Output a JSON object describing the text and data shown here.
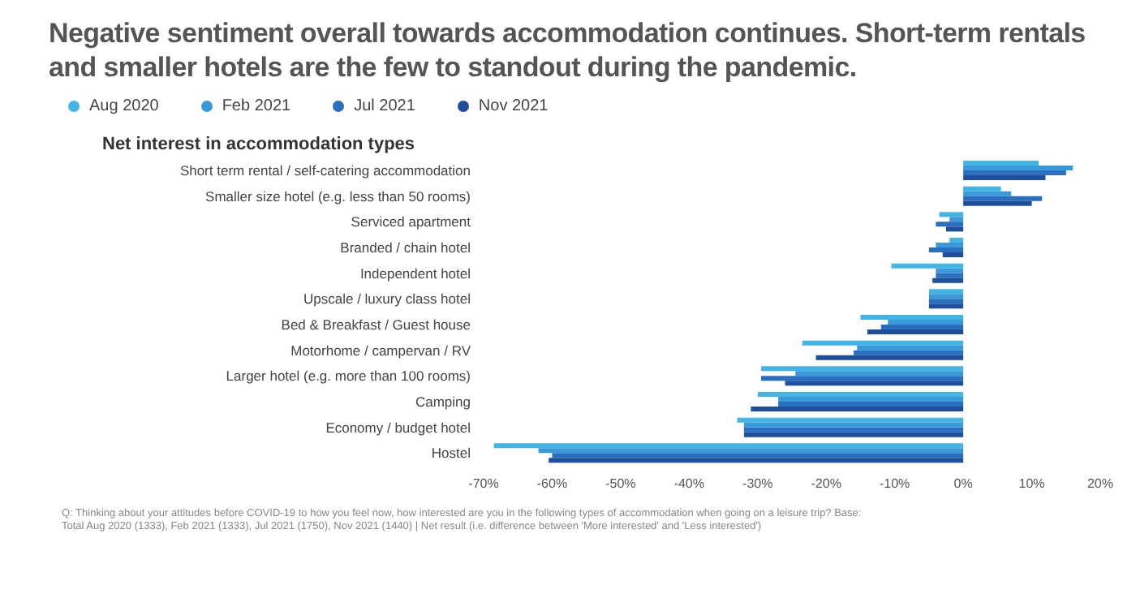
{
  "chart_data": {
    "type": "bar",
    "orientation": "horizontal",
    "title": "Negative sentiment overall towards accommodation continues. Short-term rentals and smaller hotels are the few to standout during the pandemic.",
    "subtitle": "Net interest in accommodation types",
    "categories": [
      "Short term rental / self-catering accommodation",
      "Smaller size hotel (e.g. less than 50 rooms)",
      "Serviced apartment",
      "Branded / chain hotel",
      "Independent hotel",
      "Upscale / luxury class hotel",
      "Bed & Breakfast / Guest house",
      "Motorhome / campervan / RV",
      "Larger hotel (e.g. more than 100 rooms)",
      "Camping",
      "Economy / budget hotel",
      "Hostel"
    ],
    "series": [
      {
        "name": "Aug 2020",
        "color": "#41b6e6",
        "values": [
          11,
          5.5,
          -3.5,
          -2,
          -10.5,
          -5,
          -15,
          -23.5,
          -29.5,
          -30,
          -33,
          -68.5
        ]
      },
      {
        "name": "Feb 2021",
        "color": "#3a9ad9",
        "values": [
          16,
          7,
          -2,
          -4,
          -4,
          -5,
          -11,
          -15.5,
          -24.5,
          -27,
          -32,
          -62
        ]
      },
      {
        "name": "Jul 2021",
        "color": "#2a6fc0",
        "values": [
          15,
          11.5,
          -4,
          -5,
          -4,
          -5,
          -12,
          -16,
          -29.5,
          -27,
          -32,
          -60
        ]
      },
      {
        "name": "Nov 2021",
        "color": "#1f4e9c",
        "values": [
          12,
          10,
          -2.5,
          -3,
          -4.5,
          -5,
          -14,
          -21.5,
          -26,
          -31,
          -32,
          -60.5
        ]
      }
    ],
    "xlim": [
      -70,
      20
    ],
    "xticks": [
      {
        "value": -70,
        "label": "-70%"
      },
      {
        "value": -60,
        "label": "-60%"
      },
      {
        "value": -50,
        "label": "-50%"
      },
      {
        "value": -40,
        "label": "-40%"
      },
      {
        "value": -30,
        "label": "-30%"
      },
      {
        "value": -20,
        "label": "-20%"
      },
      {
        "value": -10,
        "label": "-10%"
      },
      {
        "value": 0,
        "label": "0%"
      },
      {
        "value": 10,
        "label": "10%"
      },
      {
        "value": 20,
        "label": "20%"
      }
    ],
    "grid": false,
    "legend": "top left",
    "annotations": [
      "Q: Thinking about your attitudes before COVID-19 to how you feel now, how interested are you in the following types of accommodation when going on a leisure trip? Base: Total Aug 2020 (1333), Feb 2021 (1333), Jul 2021 (1750), Nov 2021 (1440) | Net result (i.e. difference between 'More interested' and 'Less interested')"
    ]
  }
}
